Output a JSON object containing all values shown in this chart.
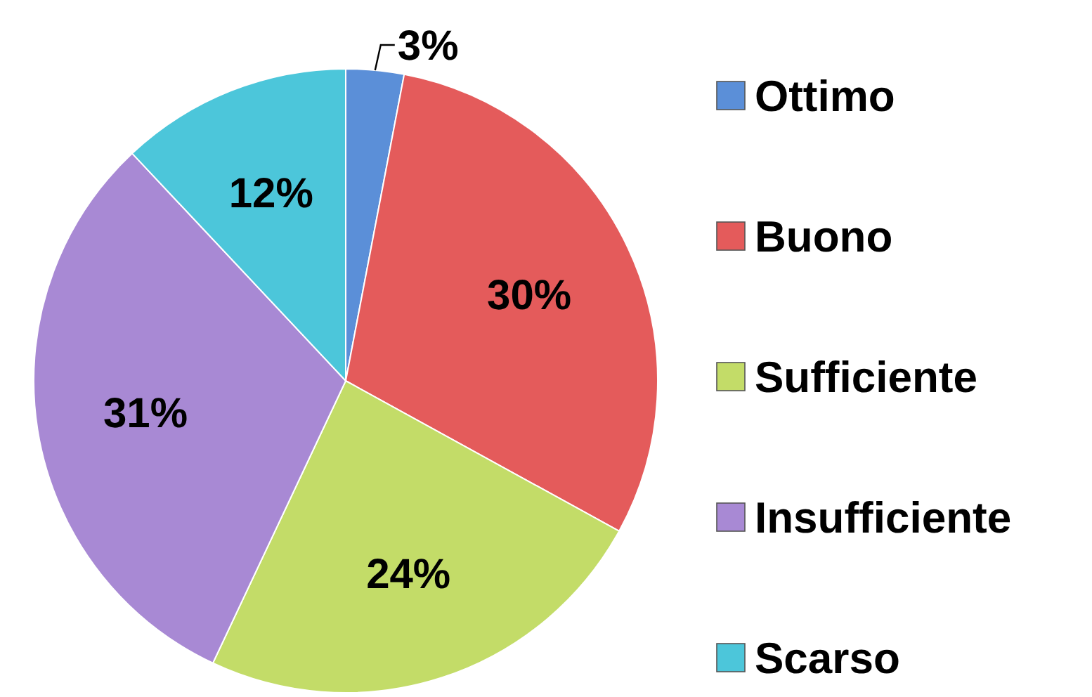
{
  "chart_data": {
    "type": "pie",
    "categories": [
      "Ottimo",
      "Buono",
      "Sufficiente",
      "Insufficiente",
      "Scarso"
    ],
    "values": [
      3,
      30,
      24,
      31,
      12
    ],
    "colors": [
      "#5b8fd8",
      "#e45b5b",
      "#c3dc68",
      "#a889d4",
      "#4cc6da"
    ],
    "value_labels": [
      "3%",
      "30%",
      "24%",
      "31%",
      "12%"
    ],
    "legend": "right"
  }
}
